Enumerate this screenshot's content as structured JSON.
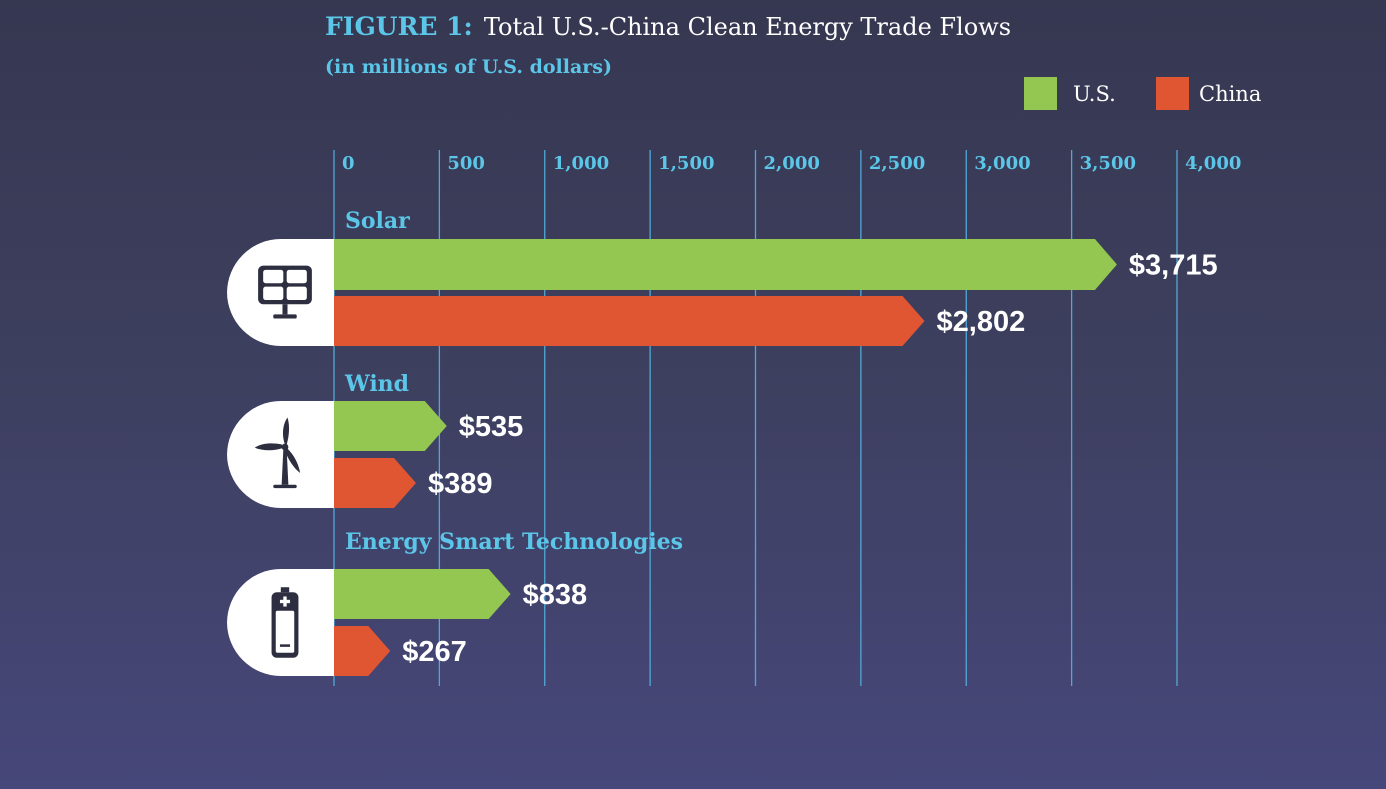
{
  "title_prefix": "FIGURE 1:",
  "title_main": "Total U.S.-China Clean Energy Trade Flows",
  "subtitle": "(in millions of U.S. dollars)",
  "chart_data": {
    "type": "bar",
    "orientation": "horizontal",
    "title": "FIGURE 1: Total U.S.-China Clean Energy Trade Flows",
    "subtitle": "(in millions of U.S. dollars)",
    "categories": [
      "Solar",
      "Wind",
      "Energy Smart Technologies"
    ],
    "category_icons": [
      "solar-panel-icon",
      "wind-turbine-icon",
      "battery-icon"
    ],
    "series": [
      {
        "name": "U.S.",
        "color": "#93c751",
        "values": [
          3715,
          535,
          838
        ],
        "labels": [
          "$3,715",
          "$535",
          "$838"
        ]
      },
      {
        "name": "China",
        "color": "#e05532",
        "values": [
          2802,
          389,
          267
        ],
        "labels": [
          "$2,802",
          "$389",
          "$267"
        ]
      }
    ],
    "xlim": [
      0,
      4000
    ],
    "ticks": [
      0,
      500,
      1000,
      1500,
      2000,
      2500,
      3000,
      3500,
      4000
    ],
    "tick_labels": [
      "0",
      "500",
      "1,000",
      "1,500",
      "2,000",
      "2,500",
      "3,000",
      "3,500",
      "4,000"
    ],
    "grid": true,
    "legend_position": "top-right"
  }
}
